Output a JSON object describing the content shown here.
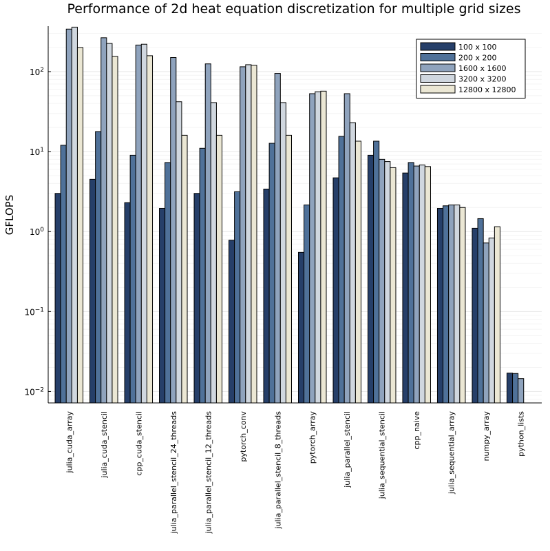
{
  "chart_data": {
    "type": "bar",
    "title": "Performance of 2d heat equation discretization for multiple grid sizes",
    "xlabel": "",
    "ylabel": "GFLOPS",
    "yscale": "log10",
    "ylim": [
      0.0072,
      370
    ],
    "yticks": [
      0.01,
      0.1,
      1,
      10,
      100
    ],
    "ytick_labels": [
      {
        "base": "10",
        "exp": "−2"
      },
      {
        "base": "10",
        "exp": "−1"
      },
      {
        "base": "10",
        "exp": "0"
      },
      {
        "base": "10",
        "exp": "1"
      },
      {
        "base": "10",
        "exp": "2"
      }
    ],
    "grid": true,
    "legend_position": "top-right",
    "categories": [
      "julia_cuda_array",
      "julia_cuda_stencil",
      "cpp_cuda_stencil",
      "julia_parallel_stencil_24_threads",
      "julia_parallel_stencil_12_threads",
      "pytorch_conv",
      "julia_parallel_stencil_8_threads",
      "pytorch_array",
      "julia_parallel_stencil",
      "julia_sequential_stencil",
      "cpp_naive",
      "julia_sequential_array",
      "numpy_array",
      "python_lists"
    ],
    "series": [
      {
        "name": "100 x 100",
        "color": "#263f69",
        "values": [
          3.0,
          4.5,
          2.3,
          1.95,
          3.0,
          0.78,
          3.4,
          0.55,
          4.7,
          9.0,
          5.4,
          1.95,
          1.1,
          0.017
        ]
      },
      {
        "name": "200 x 200",
        "color": "#4f7199",
        "values": [
          12.0,
          17.8,
          9.0,
          7.3,
          11.0,
          3.15,
          12.7,
          2.15,
          15.5,
          13.5,
          7.3,
          2.1,
          1.45,
          0.0168
        ]
      },
      {
        "name": "1600 x 1600",
        "color": "#8fa3bd",
        "values": [
          340,
          265,
          215,
          150,
          125,
          115,
          95,
          53,
          53,
          8.0,
          6.6,
          2.15,
          0.72,
          0.0145
        ]
      },
      {
        "name": "3200 x 3200",
        "color": "#d0d7df",
        "values": [
          360,
          225,
          220,
          42,
          41,
          122,
          41,
          56,
          23,
          7.5,
          6.8,
          2.15,
          0.83,
          null
        ]
      },
      {
        "name": "12800 x 12800",
        "color": "#ebe7d4",
        "values": [
          200,
          155,
          158,
          16,
          16,
          120,
          16,
          57,
          13.5,
          6.3,
          6.5,
          2.0,
          1.15,
          null
        ]
      }
    ]
  }
}
